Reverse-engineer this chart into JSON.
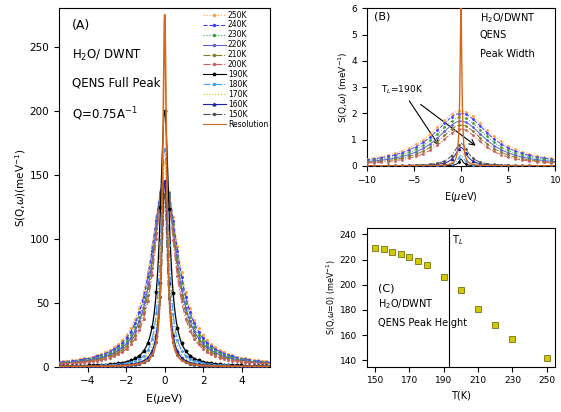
{
  "temperatures": [
    250,
    240,
    230,
    220,
    210,
    200,
    190,
    180,
    170,
    160,
    150
  ],
  "temp_colors": [
    "#FFA040",
    "#4040FF",
    "#40A040",
    "#6060CC",
    "#808020",
    "#CC6060",
    "#000000",
    "#40A0FF",
    "#C8C800",
    "#2020AA",
    "#505050"
  ],
  "temp_linestyles_A": [
    "dotted",
    "dashed",
    "dotted",
    "solid",
    "dashdot",
    "dashdot",
    "solid",
    "dashdot",
    "dotted",
    "solid",
    "dashdot"
  ],
  "temp_markers_A": [
    "o",
    "o",
    "o",
    "o",
    "o",
    "o",
    "*",
    "o",
    ".",
    "^",
    "o"
  ],
  "resolution_color": "#D2691E",
  "panel_A": {
    "xlabel": "E($\\mu$eV)",
    "ylabel": "S(Q,$\\omega$)(meV$^{-1}$)",
    "xlim": [
      -5.5,
      5.5
    ],
    "ylim": [
      0,
      280
    ],
    "yticks": [
      0,
      50,
      100,
      150,
      200,
      250
    ],
    "label": "(A)",
    "text_lines": [
      "H$_2$O/ DWNT",
      "QENS Full Peak",
      "Q=0.75A$^{-1}$"
    ]
  },
  "panel_B": {
    "xlabel": "E($\\mu$eV)",
    "ylabel": "S(Q,$\\omega$) (meV$^{-1}$)",
    "xlim": [
      -10,
      10
    ],
    "ylim": [
      0,
      6
    ],
    "yticks": [
      0,
      1,
      2,
      3,
      4,
      5,
      6
    ],
    "label": "(B)",
    "text_lines": [
      "H$_2$O/DWNT",
      "QENS",
      "Peak Width"
    ],
    "annotation": "T$_L$=190K"
  },
  "panel_C": {
    "xlabel": "T(K)",
    "ylabel": "S(Q,$\\omega$=0) (meV$^{-1}$)",
    "xlim": [
      145,
      255
    ],
    "ylim": [
      135,
      245
    ],
    "yticks": [
      140,
      160,
      180,
      200,
      220,
      240
    ],
    "xticks": [
      150,
      170,
      190,
      210,
      230,
      250
    ],
    "label": "(C)",
    "text_lines": [
      "H$_2$O/DWNT",
      "QENS Peak Height"
    ],
    "TL_x": 193,
    "TL_label": "T$_L$",
    "peak_heights": [
      229,
      228,
      226,
      224,
      222,
      219,
      216,
      206,
      196,
      181,
      168,
      157,
      142
    ],
    "peak_temps": [
      150,
      155,
      160,
      165,
      170,
      175,
      180,
      190,
      200,
      210,
      220,
      230,
      250
    ]
  },
  "heights_A": [
    145,
    145,
    145,
    145,
    145,
    145,
    200,
    170,
    160,
    145,
    135
  ],
  "gammas_A": [
    0.9,
    0.85,
    0.8,
    0.75,
    0.7,
    0.65,
    0.28,
    0.25,
    0.22,
    0.2,
    0.18
  ],
  "res_gamma_A": 0.12,
  "res_height_A": 275,
  "heights_B": [
    2.1,
    2.0,
    1.85,
    1.7,
    1.55,
    1.4,
    0.25,
    0.4,
    0.55,
    0.7,
    0.85
  ],
  "gammas_B": [
    3.8,
    3.6,
    3.4,
    3.2,
    3.0,
    2.8,
    0.28,
    0.42,
    0.58,
    0.74,
    0.92
  ],
  "res_gamma_B": 0.12,
  "res_height_B": 6.0
}
